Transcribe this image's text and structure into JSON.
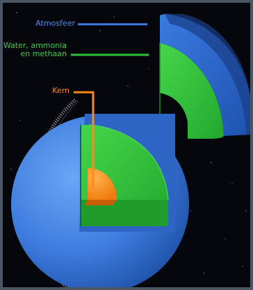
{
  "labels": {
    "atmosphere": "Atmosfeer",
    "mantle": "Water, ammonia en methaan",
    "core": "Kern"
  },
  "colors": {
    "atmosphere": "#3f7ee0",
    "mantle": "#2ec43a",
    "core": "#ff8a1a",
    "background": "#06070c",
    "frame": "#4a5762"
  }
}
